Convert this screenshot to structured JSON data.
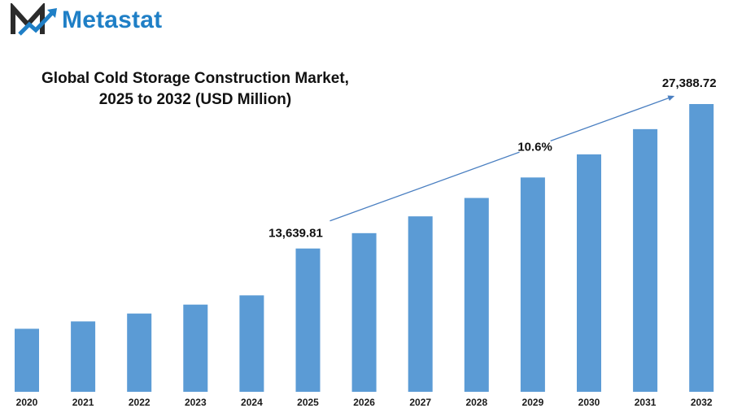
{
  "brand": {
    "name": "Metastat",
    "color": "#1f7fc6"
  },
  "chart_data": {
    "type": "bar",
    "title_line1": "Global Cold Storage Construction Market,",
    "title_line2": "2025 to 2032 (USD Million)",
    "xlabel": "",
    "ylabel": "",
    "categories": [
      "2020",
      "2021",
      "2022",
      "2023",
      "2024",
      "2025",
      "2026",
      "2027",
      "2028",
      "2029",
      "2030",
      "2031",
      "2032"
    ],
    "values": [
      6000,
      6700,
      7450,
      8300,
      9180,
      13639.81,
      15100,
      16700,
      18450,
      20400,
      22600,
      25000,
      27388.72
    ],
    "ylim": [
      0,
      30000
    ],
    "bar_color": "#5b9bd5",
    "annotations": {
      "start_label": "13,639.81",
      "end_label": "27,388.72",
      "cagr_label": "10.6%"
    },
    "grid": false,
    "legend": "none"
  }
}
